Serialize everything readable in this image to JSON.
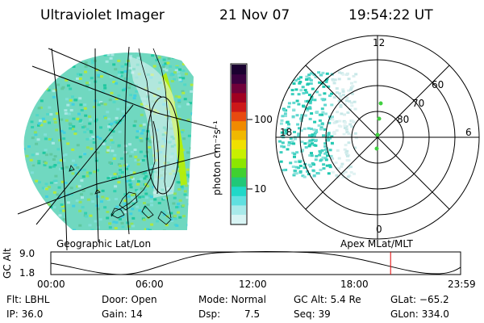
{
  "header": {
    "instrument": "Ultraviolet Imager",
    "date": "21 Nov 07",
    "time": "19:54:22 UT"
  },
  "colorbar": {
    "unit_label": "photon cm⁻²s⁻¹",
    "ticks": [
      "100",
      "10"
    ],
    "colors": [
      "#1a0030",
      "#3a0040",
      "#70003a",
      "#a00020",
      "#cc1818",
      "#e84a10",
      "#f08a00",
      "#f0b800",
      "#f0e000",
      "#c8f000",
      "#8ce600",
      "#40d030",
      "#20c878",
      "#20d8c8",
      "#60e0e0",
      "#a8eaea",
      "#d8f4f4"
    ]
  },
  "left_panel": {
    "label": "Geographic Lat/Lon"
  },
  "right_panel": {
    "label": "Apex MLat/MLT",
    "mlt_labels": {
      "top": "12",
      "left": "18",
      "right": "6",
      "bottom": "0"
    },
    "mlat_labels": [
      "60",
      "70",
      "80"
    ]
  },
  "altitude_plot": {
    "ylabel": "GC Alt",
    "ymax": "9.0",
    "ymin": "1.8",
    "xticks": [
      "00:00",
      "06:00",
      "12:00",
      "18:00",
      "23:59"
    ],
    "current_hour": 19.9
  },
  "info": {
    "filter": "Flt: LBHL",
    "ip": "IP: 36.0",
    "door": "Door: Open",
    "gain": "Gain: 14",
    "mode": "Mode: Normal",
    "dsp_label": "Dsp:",
    "dsp_value": "7.5",
    "gc_alt": "GC Alt: 5.4 Re",
    "seq": "Seq: 39",
    "glat": "GLat: −65.2",
    "glon": "GLon: 334.0"
  }
}
